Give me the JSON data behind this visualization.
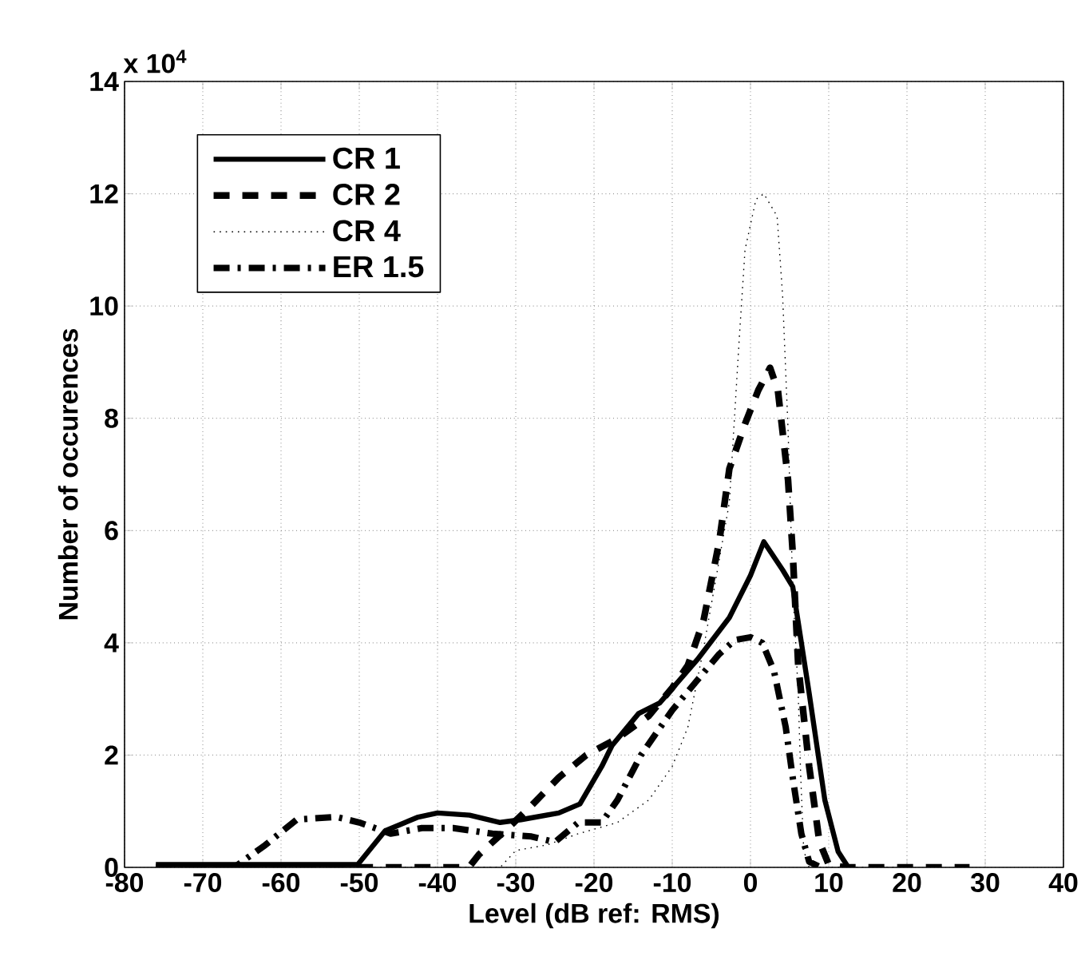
{
  "chart_data": {
    "type": "line",
    "xlabel": "Level (dB ref: RMS)",
    "ylabel": "Number of occurences",
    "annotations": [
      "x 10$^{4}$"
    ],
    "xlim": [
      -80,
      40
    ],
    "xticks": [
      -80,
      -70,
      -60,
      -50,
      -40,
      -30,
      -20,
      -10,
      0,
      10,
      20,
      30,
      40
    ],
    "ylim": [
      0,
      14
    ],
    "yticks": [
      0,
      2,
      4,
      6,
      8,
      10,
      12,
      14
    ],
    "grid": true,
    "legend": "top left",
    "series": [
      {
        "name": "CR 1",
        "color": "#000000",
        "line_style": "solid",
        "x": [
          -76,
          -50.2,
          -46.7,
          -42.6,
          -40,
          -35.9,
          -32,
          -29.3,
          -24.5,
          -21.8,
          -19,
          -17.7,
          -14.3,
          -11.6,
          -6.8,
          -2.7,
          0,
          1.7,
          4.1,
          5.4,
          7.5,
          9.5,
          11.2,
          12.5
        ],
        "values": [
          0.05,
          0.05,
          0.65,
          0.89,
          0.97,
          0.93,
          0.8,
          0.85,
          0.97,
          1.13,
          1.8,
          2.17,
          2.74,
          2.93,
          3.7,
          4.45,
          5.2,
          5.8,
          5.3,
          5.0,
          3.1,
          1.2,
          0.28,
          0
        ]
      },
      {
        "name": "CR 2",
        "color": "#000000",
        "line_style": "dashed",
        "x": [
          -76,
          -36,
          -34.7,
          -31,
          -28,
          -24.5,
          -21,
          -17,
          -13,
          -10,
          -8,
          -6,
          -4,
          -2.7,
          -0.7,
          1,
          2.5,
          3.5,
          4.8,
          5.4,
          6.1,
          7.5,
          8.8,
          10,
          12,
          28
        ],
        "values": [
          0,
          0,
          0.23,
          0.7,
          1.1,
          1.6,
          2.0,
          2.3,
          2.7,
          3.2,
          3.6,
          4.4,
          5.8,
          7.1,
          7.9,
          8.5,
          8.9,
          8.5,
          6.9,
          5.6,
          3.6,
          1.8,
          0.46,
          0.05,
          0,
          0
        ]
      },
      {
        "name": "CR 4",
        "color": "#000000",
        "line_style": "dotted",
        "x": [
          -76,
          -32,
          -30,
          -26,
          -22,
          -17,
          -13,
          -10,
          -8,
          -6,
          -2.7,
          -1.4,
          -0.7,
          0.7,
          1.7,
          3.4,
          4.1,
          4.8,
          5.4,
          6.1,
          6.4,
          6.8,
          7.5,
          20
        ],
        "values": [
          0,
          0,
          0.3,
          0.4,
          0.6,
          0.8,
          1.2,
          1.8,
          2.5,
          3.9,
          6.5,
          9.5,
          11.0,
          11.9,
          12.0,
          11.6,
          10.2,
          7.8,
          5.0,
          3.1,
          1.7,
          0.3,
          0,
          0
        ]
      },
      {
        "name": "ER 1.5",
        "color": "#000000",
        "line_style": "dashdot",
        "x": [
          -76,
          -66,
          -62,
          -58,
          -53,
          -50,
          -46,
          -42,
          -38,
          -33,
          -28,
          -25,
          -22,
          -19,
          -17,
          -14,
          -12,
          -10,
          -7,
          -4,
          -2,
          0,
          1.5,
          3,
          4.5,
          5.5,
          6.5,
          7.5,
          9
        ],
        "values": [
          0,
          0,
          0.4,
          0.85,
          0.9,
          0.8,
          0.6,
          0.7,
          0.7,
          0.6,
          0.55,
          0.45,
          0.8,
          0.8,
          1.2,
          2.0,
          2.4,
          2.8,
          3.3,
          3.8,
          4.05,
          4.1,
          4.0,
          3.5,
          2.5,
          1.5,
          0.6,
          0.1,
          0
        ]
      }
    ]
  }
}
